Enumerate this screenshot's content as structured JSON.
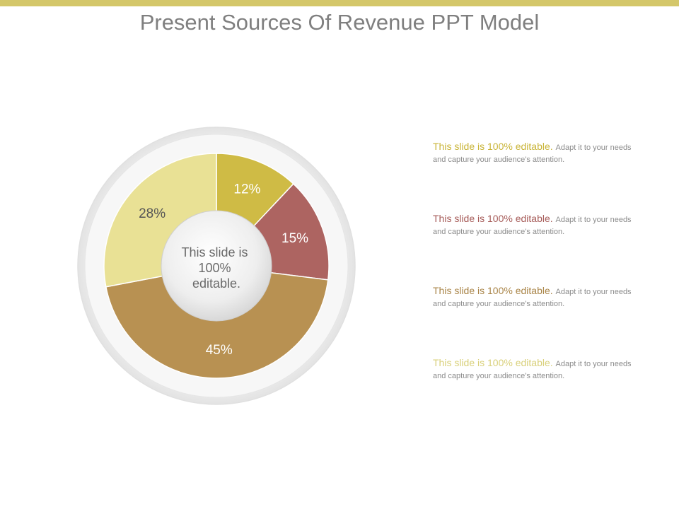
{
  "slide": {
    "title": "Present Sources Of Revenue PPT Model",
    "accent_bar_color": "#d4c76a"
  },
  "chart_data": {
    "type": "pie",
    "center_label": "This slide is 100% editable.",
    "slices": [
      {
        "value": 12,
        "label": "12%",
        "color": "#cfbb45",
        "label_color": "#ffffff"
      },
      {
        "value": 15,
        "label": "15%",
        "color": "#ad6461",
        "label_color": "#ffffff"
      },
      {
        "value": 45,
        "label": "45%",
        "color": "#b89152",
        "label_color": "#ffffff"
      },
      {
        "value": 28,
        "label": "28%",
        "color": "#e9e195",
        "label_color": "#555555"
      }
    ]
  },
  "descriptions": [
    {
      "headline": "This slide is 100% editable.",
      "body": "Adapt it to your needs and capture your audience's attention.",
      "color": "#c9b437"
    },
    {
      "headline": "This slide is 100% editable.",
      "body": "Adapt it to your needs and capture your audience's attention.",
      "color": "#a65b58"
    },
    {
      "headline": "This slide is 100% editable.",
      "body": "Adapt it to your needs and capture your audience's attention.",
      "color": "#a98447"
    },
    {
      "headline": "This slide is 100% editable.",
      "body": "Adapt it to your needs and capture your audience's attention.",
      "color": "#d9d07a"
    }
  ]
}
